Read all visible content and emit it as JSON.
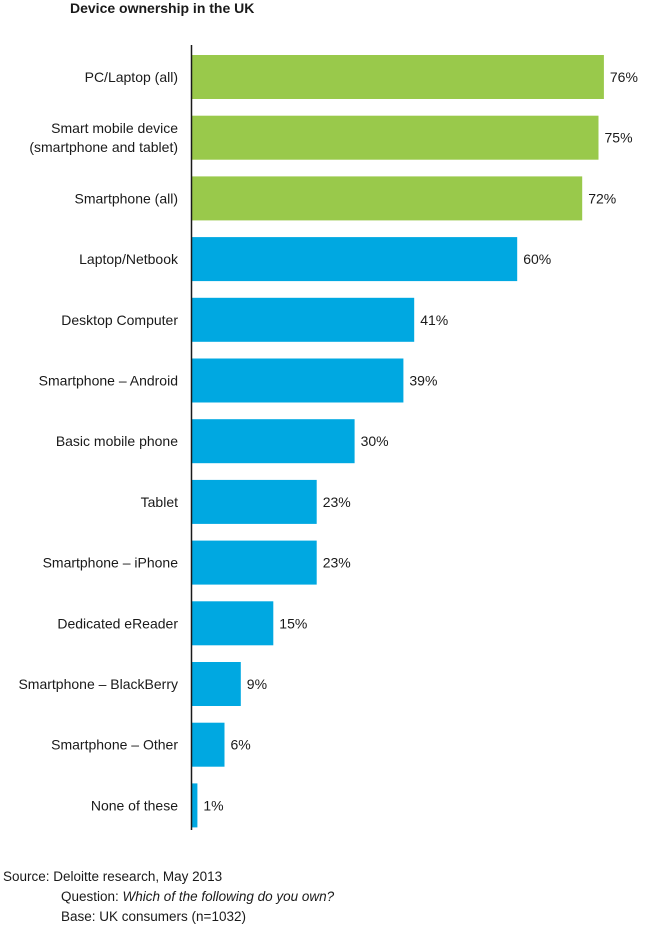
{
  "title": "Device ownership in the UK",
  "chart_data": {
    "type": "bar",
    "orientation": "horizontal",
    "title": "Device ownership in the UK",
    "categories": [
      [
        "PC/Laptop (all)"
      ],
      [
        "Smart mobile device",
        "(smartphone and tablet)"
      ],
      [
        "Smartphone (all)"
      ],
      [
        "Laptop/Netbook"
      ],
      [
        "Desktop Computer"
      ],
      [
        "Smartphone – Android"
      ],
      [
        "Basic mobile phone"
      ],
      [
        "Tablet"
      ],
      [
        "Smartphone – iPhone"
      ],
      [
        "Dedicated eReader"
      ],
      [
        "Smartphone – BlackBerry"
      ],
      [
        "Smartphone – Other"
      ],
      [
        "None of these"
      ]
    ],
    "values": [
      76,
      75,
      72,
      60,
      41,
      39,
      30,
      23,
      23,
      15,
      9,
      6,
      1
    ],
    "value_labels": [
      "76%",
      "75%",
      "72%",
      "60%",
      "41%",
      "39%",
      "30%",
      "23%",
      "23%",
      "15%",
      "9%",
      "6%",
      "1%"
    ],
    "bar_colors": [
      "#99c94b",
      "#99c94b",
      "#99c94b",
      "#00a8e1",
      "#00a8e1",
      "#00a8e1",
      "#00a8e1",
      "#00a8e1",
      "#00a8e1",
      "#00a8e1",
      "#00a8e1",
      "#00a8e1",
      "#00a8e1"
    ],
    "xlim": [
      0,
      100
    ],
    "grid": false,
    "legend": "none"
  },
  "footer": {
    "source": "Source: Deloitte research, May 2013",
    "question_label": "Question: ",
    "question_text": "Which of the following do you own?",
    "base": "Base: UK consumers (n=1032)"
  },
  "colors": {
    "green": "#99c94b",
    "blue": "#00a8e1",
    "axis": "#1a1a1a"
  }
}
